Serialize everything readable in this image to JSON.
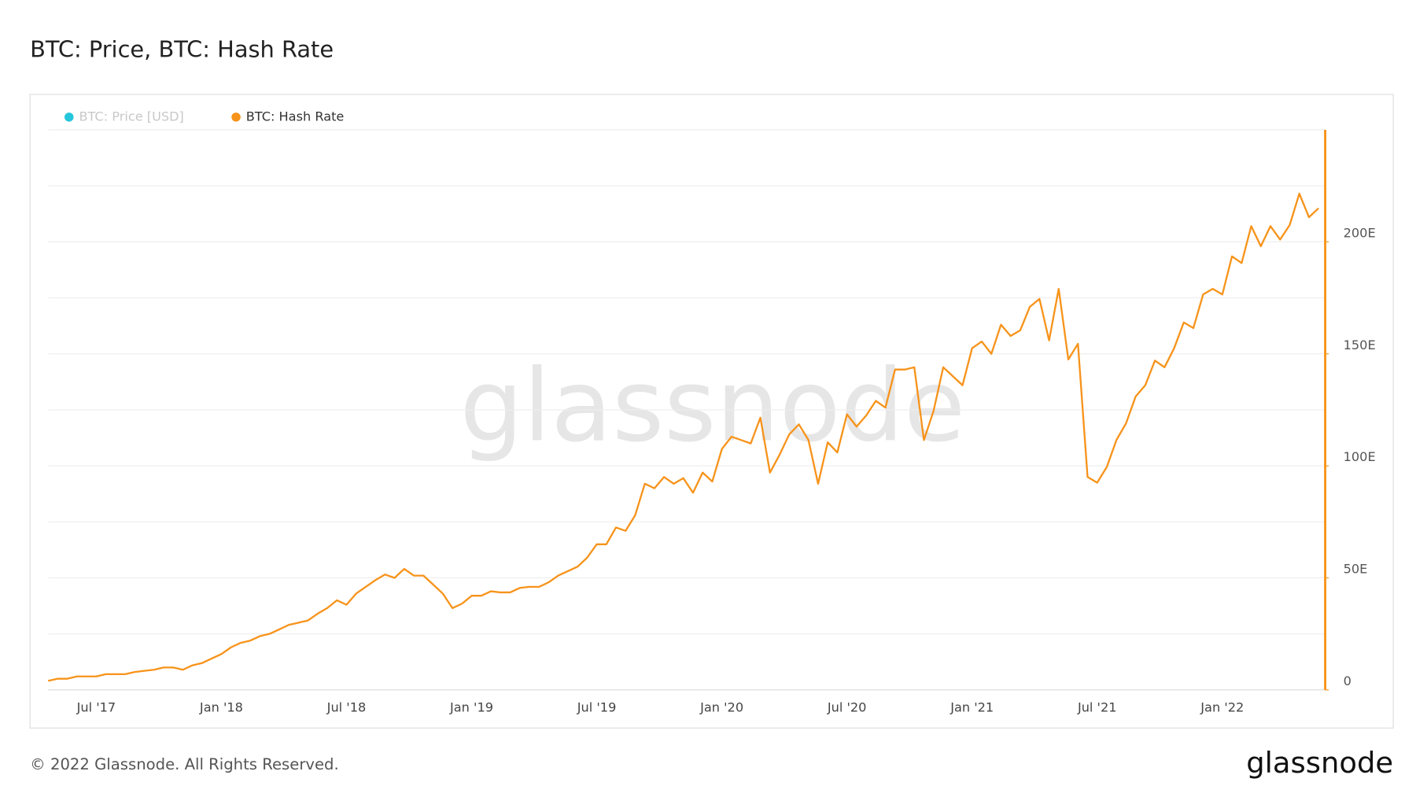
{
  "chart_data": {
    "type": "line",
    "title": "BTC: Price, BTC: Hash Rate",
    "hidden_series": [
      {
        "name": "BTC: Price [USD]",
        "color": "#26c6da"
      }
    ],
    "series": [
      {
        "name": "BTC: Hash Rate",
        "color": "#f7931a",
        "values": [
          4,
          5,
          5,
          6,
          6,
          6,
          7,
          7,
          7,
          8,
          8.5,
          9,
          10,
          10,
          9,
          11,
          12,
          14,
          16,
          19,
          21,
          22,
          24,
          25,
          27,
          29,
          30,
          31,
          34,
          36.5,
          40,
          38,
          43,
          46,
          49,
          51.5,
          50,
          54,
          51,
          51,
          47,
          43,
          36.5,
          38.5,
          42,
          42,
          44,
          43.5,
          43.5,
          45.5,
          46,
          46,
          48,
          51,
          53,
          55,
          59,
          65,
          65,
          72.5,
          71,
          78,
          92,
          90,
          95,
          92,
          94.5,
          88,
          97,
          93,
          107.5,
          113,
          111.5,
          110,
          121.5,
          97,
          105,
          114,
          118.5,
          111.5,
          92,
          110.5,
          106,
          123,
          117.5,
          122.5,
          129,
          126,
          143,
          143,
          144,
          111.5,
          124.5,
          144,
          140,
          136,
          152.5,
          155.5,
          150,
          163,
          158,
          160.5,
          171,
          174.5,
          156,
          179,
          147.5,
          154.5,
          95,
          92.5,
          99.5,
          111.5,
          119,
          131,
          136,
          147,
          144,
          152.5,
          164,
          161.5,
          176.5,
          179,
          176.5,
          193.5,
          190.5,
          207,
          198,
          207,
          201,
          207.5,
          221.5,
          211,
          215
        ]
      }
    ],
    "categories": [
      null,
      null,
      null,
      null,
      null,
      "Jul '17",
      null,
      null,
      null,
      null,
      null,
      null,
      null,
      null,
      null,
      null,
      null,
      null,
      "Jan '18",
      null,
      null,
      null,
      null,
      null,
      null,
      null,
      null,
      null,
      null,
      null,
      null,
      "Jul '18",
      null,
      null,
      null,
      null,
      null,
      null,
      null,
      null,
      null,
      null,
      null,
      null,
      "Jan '19",
      null,
      null,
      null,
      null,
      null,
      null,
      null,
      null,
      null,
      null,
      null,
      null,
      "Jul '19",
      null,
      null,
      null,
      null,
      null,
      null,
      null,
      null,
      null,
      null,
      null,
      null,
      "Jan '20",
      null,
      null,
      null,
      null,
      null,
      null,
      null,
      null,
      null,
      null,
      null,
      null,
      "Jul '20",
      null,
      null,
      null,
      null,
      null,
      null,
      null,
      null,
      null,
      null,
      null,
      null,
      "Jan '21",
      null,
      null,
      null,
      null,
      null,
      null,
      null,
      null,
      null,
      null,
      null,
      null,
      "Jul '21",
      null,
      null,
      null,
      null,
      null,
      null,
      null,
      null,
      null,
      null,
      null,
      null,
      "Jan '22",
      null,
      null,
      null,
      null,
      null,
      null,
      null,
      null,
      null,
      null
    ],
    "ylim": [
      0,
      250
    ],
    "yticks": [
      0,
      {
        "value": 50,
        "label": "50E"
      },
      {
        "value": 100,
        "label": "100E"
      },
      {
        "value": 150,
        "label": "150E"
      },
      {
        "value": 200,
        "label": "200E"
      }
    ],
    "ygrid": [
      0,
      25,
      50,
      75,
      100,
      125,
      150,
      175,
      200,
      225,
      250
    ],
    "watermark": "glassnode"
  },
  "footer": {
    "copyright": "© 2022 Glassnode. All Rights Reserved.",
    "logo": "glassnode"
  }
}
